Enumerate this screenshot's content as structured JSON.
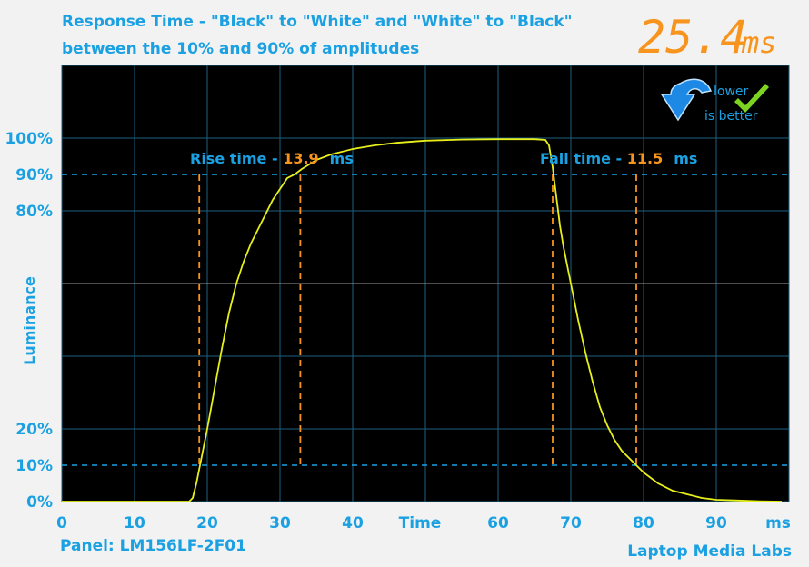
{
  "header": {
    "title_line1": "Response Time - \"Black\" to \"White\" and \"White\" to \"Black\"",
    "title_line2": "between the 10% and 90% of amplitudes",
    "result_value": "25.4",
    "result_unit": "ms"
  },
  "badge": {
    "line1": "lower",
    "line2": "is better",
    "icon": "down-arrow-check-icon"
  },
  "footer": {
    "panel": "Panel: LM156LF-2F01",
    "brand": "Laptop Media Labs"
  },
  "colors": {
    "accent_cyan": "#1ba1e2",
    "annotation_orange": "#f7941d",
    "trace_yellow": "#e8f01a",
    "plot_background": "#000000",
    "grid": "#1e5f80"
  },
  "chart_data": {
    "type": "line",
    "xlabel": "Time",
    "xunit": "ms",
    "ylabel": "Luminance",
    "xlim": [
      0,
      100
    ],
    "ylim": [
      0,
      100
    ],
    "x_ticks": [
      0,
      10,
      20,
      30,
      40,
      60,
      70,
      80,
      90
    ],
    "y_tick_labels": [
      {
        "value": 0,
        "label": "0%"
      },
      {
        "value": 10,
        "label": "10%"
      },
      {
        "value": 20,
        "label": "20%"
      },
      {
        "value": 80,
        "label": "80%"
      },
      {
        "value": 90,
        "label": "90%"
      },
      {
        "value": 100,
        "label": "100%"
      }
    ],
    "reference_lines": [
      10,
      90
    ],
    "grid": true,
    "series": [
      {
        "x": [
          0,
          17.5,
          18.0,
          18.5,
          19,
          20,
          21,
          22,
          23,
          24,
          25,
          26,
          27,
          28,
          29,
          30,
          31,
          32,
          33,
          35,
          37,
          40,
          43,
          46,
          50,
          55,
          60,
          65,
          66.5,
          67,
          67.5,
          68,
          68.5,
          69,
          70,
          71,
          72,
          73,
          74,
          75,
          76,
          77,
          78,
          79,
          80,
          82,
          84,
          86,
          88,
          90,
          93,
          96,
          99
        ],
        "y": [
          0,
          0,
          1,
          5,
          10,
          20,
          31,
          42,
          52,
          60,
          66,
          71,
          75,
          79,
          83,
          86,
          89,
          90,
          91.5,
          94,
          95.5,
          97,
          98,
          98.7,
          99.3,
          99.6,
          99.7,
          99.7,
          99.5,
          98,
          92,
          84,
          76,
          70,
          60,
          50,
          41,
          33,
          26,
          21,
          17,
          14,
          12,
          10,
          8,
          5,
          3,
          2,
          1,
          0.5,
          0.3,
          0.1,
          0
        ]
      }
    ],
    "annotations": [
      {
        "label": "Rise time - ",
        "value": "13.9",
        "unit": "ms",
        "markers_x": [
          18.9,
          32.8
        ]
      },
      {
        "label": "Fall time - ",
        "value": "11.5",
        "unit": "ms",
        "markers_x": [
          67.5,
          79
        ]
      }
    ]
  }
}
